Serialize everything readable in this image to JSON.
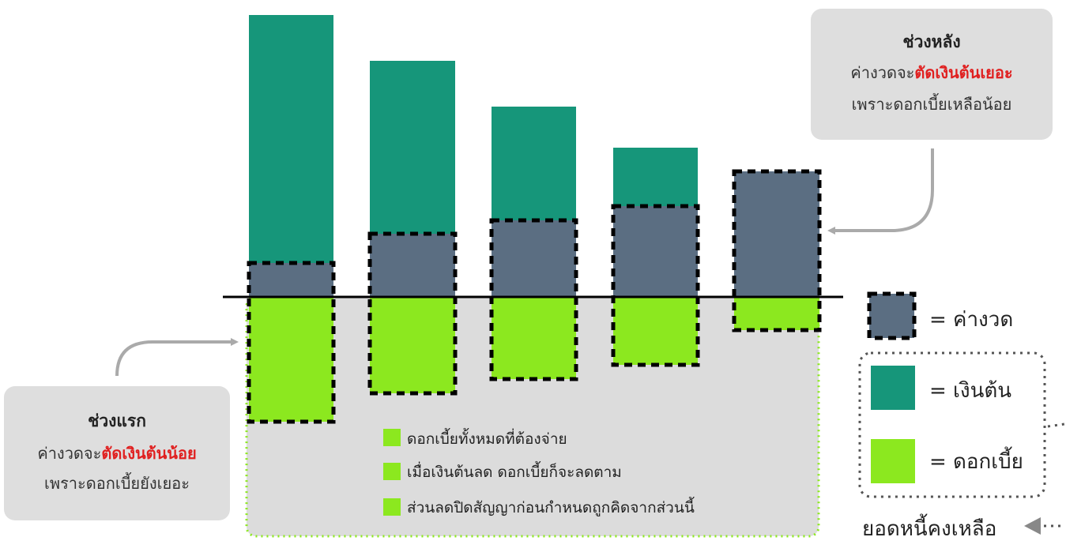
{
  "callout_top": {
    "title": "ช่วงหลัง",
    "line2_prefix": "ค่างวดจะ",
    "line2_emphasis": "ตัดเงินต้นเยอะ",
    "line3": "เพราะดอกเบี้ยเหลือน้อย"
  },
  "callout_bottom": {
    "title": "ช่วงแรก",
    "line2_prefix": "ค่างวดจะ",
    "line2_emphasis": "ตัดเงินต้นน้อย",
    "line3": "เพราะดอกเบี้ยยังเยอะ"
  },
  "notes": [
    "ดอกเบี้ยทั้งหมดที่ต้องจ่าย",
    "เมื่อเงินต้นลด ดอกเบี้ยก็จะลดตาม",
    "ส่วนลดปิดสัญญาก่อนกำหนดถูกคิดจากส่วนนี้"
  ],
  "legend": {
    "installment": "= ค่างวด",
    "principal": "= เงินต้น",
    "interest": "= ดอกเบี้ย"
  },
  "remaining_balance_label": "ยอดหนี้คงเหลือ",
  "colors": {
    "principal": "#16967a",
    "installment": "#5b6e82",
    "interest": "#8ce81f",
    "callout_bg": "#dedede",
    "interest_area": "#dcdcdc",
    "emphasis": "#e02020",
    "arrow": "#aaaaaa"
  }
}
